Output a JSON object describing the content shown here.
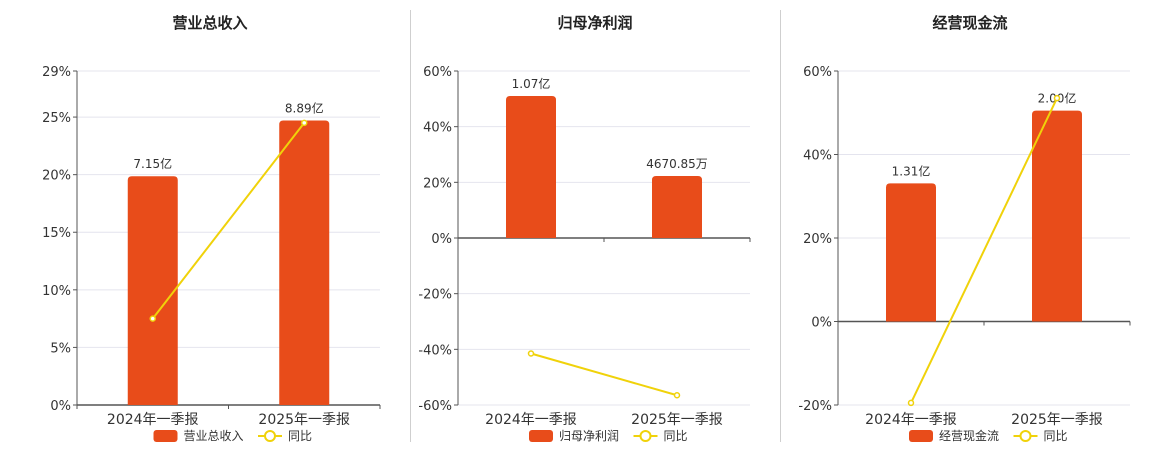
{
  "chart_data": [
    {
      "type": "bar+line",
      "title": "营业总收入",
      "categories": [
        "2024年一季报",
        "2025年一季报"
      ],
      "bar_series": {
        "name": "营业总收入",
        "values": [
          7.15,
          8.89
        ],
        "labels": [
          "7.15亿",
          "8.89亿"
        ],
        "unit": "亿"
      },
      "line_series": {
        "name": "同比",
        "values": [
          7.5,
          24.5
        ]
      },
      "y_axis": {
        "ticks": [
          "0%",
          "5%",
          "10%",
          "15%",
          "20%",
          "25%",
          "29%"
        ],
        "min": 0,
        "max": 29
      },
      "legend": [
        "营业总收入",
        "同比"
      ],
      "grid": true,
      "legend_position": "bottom"
    },
    {
      "type": "bar+line",
      "title": "归母净利润",
      "categories": [
        "2024年一季报",
        "2025年一季报"
      ],
      "bar_series": {
        "name": "归母净利润",
        "values": [
          1.07,
          0.467085
        ],
        "labels": [
          "1.07亿",
          "4670.85万"
        ],
        "unit": "亿"
      },
      "line_series": {
        "name": "同比",
        "values": [
          -41.5,
          -56.5
        ]
      },
      "y_axis": {
        "ticks": [
          "-60%",
          "-40%",
          "-20%",
          "0%",
          "20%",
          "40%",
          "60%"
        ],
        "min": -60,
        "max": 60
      },
      "legend": [
        "归母净利润",
        "同比"
      ],
      "grid": true,
      "legend_position": "bottom"
    },
    {
      "type": "bar+line",
      "title": "经营现金流",
      "categories": [
        "2024年一季报",
        "2025年一季报"
      ],
      "bar_series": {
        "name": "经营现金流",
        "values": [
          1.31,
          2.0
        ],
        "labels": [
          "1.31亿",
          "2.00亿"
        ],
        "unit": "亿"
      },
      "line_series": {
        "name": "同比",
        "values": [
          -19.5,
          53.5
        ]
      },
      "y_axis": {
        "ticks": [
          "-20%",
          "0%",
          "20%",
          "40%",
          "60%"
        ],
        "min": -20,
        "max": 60
      },
      "legend": [
        "经营现金流",
        "同比"
      ],
      "grid": true,
      "legend_position": "bottom"
    }
  ],
  "colors": {
    "bar": "#e84c1a",
    "line": "#f0d20a",
    "grid": "#e4e4ee",
    "axis": "#555555",
    "text": "#333333"
  }
}
